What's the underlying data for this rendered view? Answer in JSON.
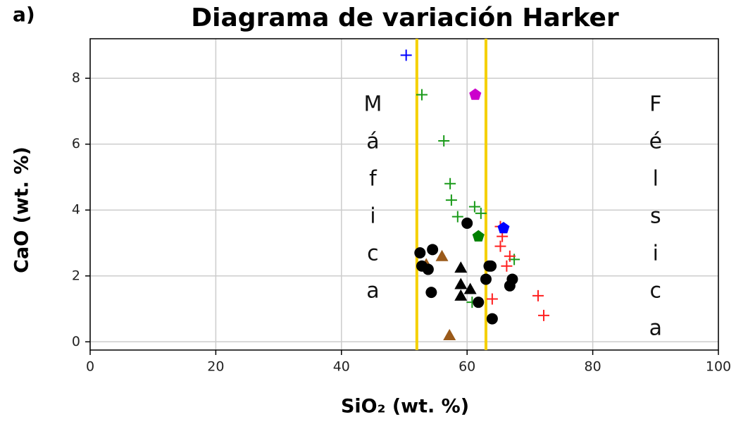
{
  "chart_data": {
    "type": "scatter",
    "title": "Diagrama de variación Harker",
    "panel_label": "a)",
    "xlabel": "SiO₂ (wt. %)",
    "ylabel": "CaO (wt. %)",
    "xlim": [
      0,
      100
    ],
    "ylim": [
      -0.25,
      9.2
    ],
    "xticks": [
      0,
      20,
      40,
      60,
      80,
      100
    ],
    "yticks": [
      0,
      2,
      4,
      6,
      8
    ],
    "grid": true,
    "vlines": [
      52,
      63
    ],
    "vline_color": "#f5d000",
    "annotations": [
      {
        "text": "Máfica",
        "x": 45,
        "y": 7.2
      },
      {
        "text": "Félsica",
        "x": 90,
        "y": 7.2
      }
    ],
    "series": [
      {
        "marker": "plus",
        "color": "#0000ff",
        "x": [
          50.3
        ],
        "values": [
          8.7
        ]
      },
      {
        "marker": "plus",
        "color": "#1a9a1a",
        "x": [
          52.8,
          56.3,
          57.3,
          57.5,
          61.2,
          62.2,
          58.5,
          60.8,
          67.5
        ],
        "values": [
          7.5,
          6.1,
          4.8,
          4.3,
          4.1,
          3.9,
          3.8,
          1.2,
          2.5
        ]
      },
      {
        "marker": "plus",
        "color": "#ff2020",
        "x": [
          65.3,
          65.6,
          65.3,
          66.8,
          66.3,
          71.3,
          72.2,
          64.0
        ],
        "values": [
          3.5,
          3.2,
          2.9,
          2.6,
          2.3,
          1.4,
          0.8,
          1.3
        ]
      },
      {
        "marker": "pentagon",
        "color": "#cc00cc",
        "x": [
          61.3
        ],
        "values": [
          7.5
        ]
      },
      {
        "marker": "pentagon",
        "color": "#008000",
        "x": [
          61.8
        ],
        "values": [
          3.2
        ]
      },
      {
        "marker": "pentagon",
        "color": "#0000ff",
        "x": [
          65.8
        ],
        "values": [
          3.45
        ]
      },
      {
        "marker": "triangle",
        "color": "#9a5a1a",
        "x": [
          56.0,
          57.2,
          53.5
        ],
        "values": [
          2.6,
          0.2,
          2.35
        ]
      },
      {
        "marker": "triangle",
        "color": "#000000",
        "x": [
          59.0,
          59.0,
          60.5,
          59.0
        ],
        "values": [
          2.25,
          1.75,
          1.6,
          1.4
        ]
      },
      {
        "marker": "circle",
        "color": "#000000",
        "x": [
          52.5,
          54.5,
          52.8,
          53.8,
          60.0,
          63.5,
          63.8,
          54.3,
          63.0,
          67.2,
          66.8,
          61.8,
          64.0
        ],
        "values": [
          2.7,
          2.8,
          2.3,
          2.2,
          3.6,
          2.3,
          2.3,
          1.5,
          1.9,
          1.9,
          1.7,
          1.2,
          0.7
        ]
      }
    ]
  }
}
